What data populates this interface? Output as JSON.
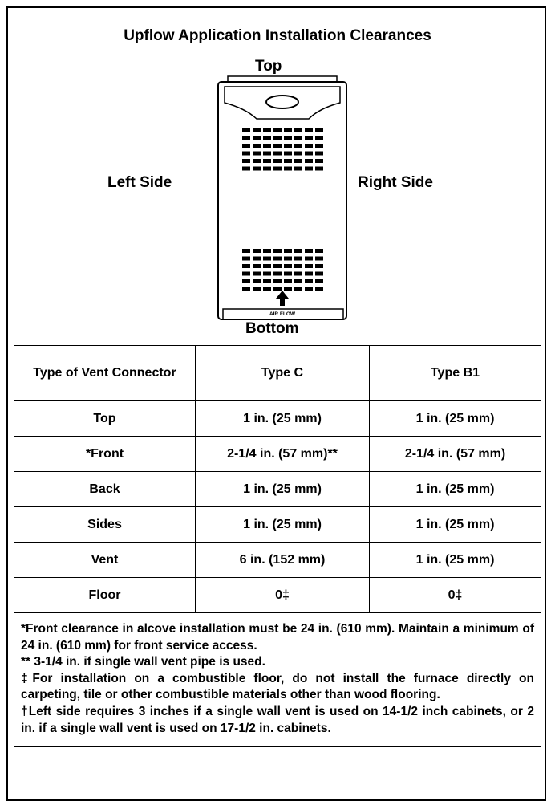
{
  "title": "Upflow Application Installation Clearances",
  "diagram": {
    "top": "Top",
    "bottom": "Bottom",
    "left": "Left Side",
    "right": "Right Side",
    "airflow_label": "AIR FLOW"
  },
  "table": {
    "header": [
      "Type of Vent Connector",
      "Type C",
      "Type B1"
    ],
    "rows": [
      [
        "Top",
        "1 in. (25 mm)",
        "1 in. (25 mm)"
      ],
      [
        "*Front",
        "2-1/4 in. (57 mm)**",
        "2-1/4 in. (57 mm)"
      ],
      [
        "Back",
        "1 in. (25 mm)",
        "1 in. (25 mm)"
      ],
      [
        "Sides",
        "1 in. (25 mm)",
        "1 in. (25 mm)"
      ],
      [
        "Vent",
        "6 in. (152 mm)",
        "1 in. (25 mm)"
      ],
      [
        "Floor",
        "0‡",
        "0‡"
      ]
    ]
  },
  "notes": [
    "*Front clearance in alcove installation must be 24 in. (610 mm). Maintain a minimum of 24 in. (610 mm) for front service access.",
    "** 3-1/4 in. if single wall vent pipe is used.",
    "‡For installation on a combustible floor, do not install the furnace directly on carpeting, tile or other combustible materials other than wood flooring.",
    "†Left side requires 3 inches if a single wall vent is used on 14-1/2 inch cabinets, or 2 in. if a single wall vent is used on 17-1/2 in. cabinets."
  ]
}
